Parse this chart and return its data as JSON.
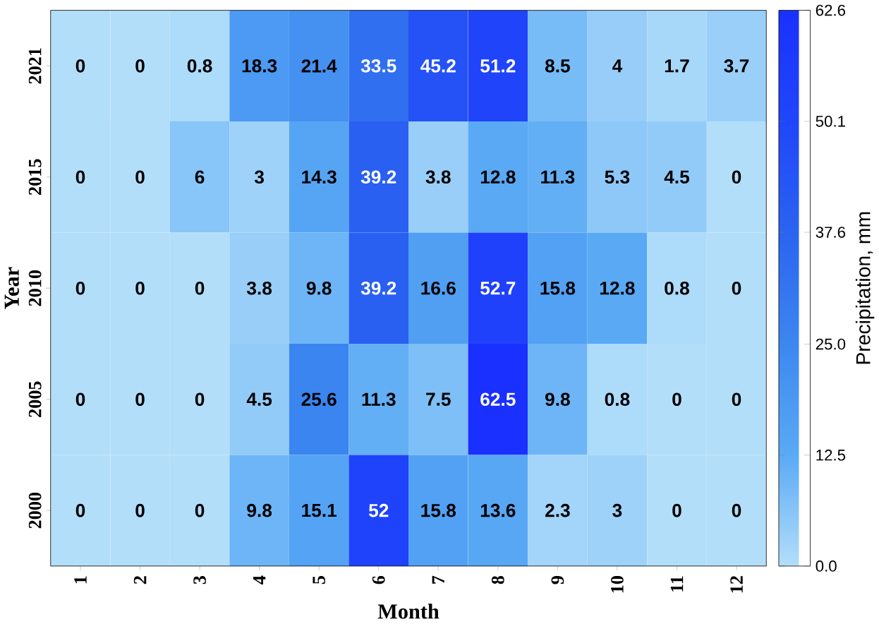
{
  "chart_data": {
    "type": "heatmap",
    "xlabel": "Month",
    "ylabel": "Year",
    "clabel": "Precipitation, mm",
    "categories": [
      "1",
      "2",
      "3",
      "4",
      "5",
      "6",
      "7",
      "8",
      "9",
      "10",
      "11",
      "12"
    ],
    "y_categories": [
      "2021",
      "2015",
      "2010",
      "2005",
      "2000"
    ],
    "cells": [
      [
        0,
        0,
        0.8,
        18.3,
        21.4,
        33.5,
        45.2,
        51.2,
        8.5,
        4,
        1.7,
        3.7
      ],
      [
        0,
        0,
        6,
        3,
        14.3,
        39.2,
        3.8,
        12.8,
        11.3,
        5.3,
        4.5,
        0
      ],
      [
        0,
        0,
        0,
        3.8,
        9.8,
        39.2,
        16.6,
        52.7,
        15.8,
        12.8,
        0.8,
        0
      ],
      [
        0,
        0,
        0,
        4.5,
        25.6,
        11.3,
        7.5,
        62.5,
        9.8,
        0.8,
        0,
        0
      ],
      [
        0,
        0,
        0,
        9.8,
        15.1,
        52,
        15.8,
        13.6,
        2.3,
        3,
        0,
        0
      ]
    ],
    "data_labels": true,
    "clim": [
      0,
      62.6
    ],
    "cticks": [
      {
        "value": 0,
        "label": "0.0"
      },
      {
        "value": 12.5,
        "label": "12.5"
      },
      {
        "value": 25,
        "label": "25.0"
      },
      {
        "value": 37.6,
        "label": "37.6"
      },
      {
        "value": 50.1,
        "label": "50.1"
      },
      {
        "value": 62.6,
        "label": "62.6"
      }
    ]
  }
}
